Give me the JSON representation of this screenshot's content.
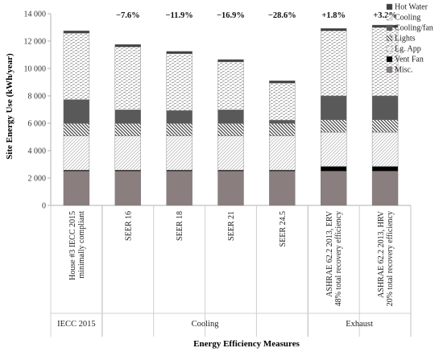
{
  "chart_data": {
    "type": "bar",
    "stacked": true,
    "ylabel": "Site Energy Use (kWh/year)",
    "xlabel": "Energy Efficiency Measures",
    "ylim": [
      0,
      14000
    ],
    "yticks": [
      0,
      2000,
      4000,
      6000,
      8000,
      10000,
      12000,
      14000
    ],
    "ytick_labels": [
      "0",
      "2 000",
      "4 000",
      "6 000",
      "8 000",
      "10 000",
      "12 000",
      "14 000"
    ],
    "categories": [
      [
        "House #3 IECC 2015",
        "minimally compliant"
      ],
      [
        "SEER 16"
      ],
      [
        "SEER 18"
      ],
      [
        "SEER 21"
      ],
      [
        "SEER 24.5"
      ],
      [
        "ASHRAE 62.2 2013, ERV",
        "48% total recovery efficiency"
      ],
      [
        "ASHRAE 62.2 2013, HRV",
        "20% total recovery efficiency"
      ]
    ],
    "groups": [
      {
        "label": "IECC 2015",
        "start": 0,
        "end": 0
      },
      {
        "label": "Cooling",
        "start": 1,
        "end": 4
      },
      {
        "label": "Exhaust",
        "start": 5,
        "end": 6
      }
    ],
    "annotations": [
      "",
      "−7.6%",
      "−11.9%",
      "−16.9%",
      "−28.6%",
      "+1.8%",
      "+3.2%"
    ],
    "grid": false,
    "legend_position": "top-right",
    "series": [
      {
        "name": "Misc.",
        "key": "misc",
        "values": [
          2500,
          2500,
          2500,
          2500,
          2500,
          2500,
          2500
        ]
      },
      {
        "name": "Vent Fan",
        "key": "vent",
        "values": [
          80,
          80,
          80,
          80,
          80,
          350,
          350
        ]
      },
      {
        "name": "Lg. App",
        "key": "lgapp",
        "values": [
          2500,
          2500,
          2500,
          2500,
          2500,
          2500,
          2500
        ]
      },
      {
        "name": "Lights",
        "key": "lights",
        "values": [
          900,
          900,
          900,
          900,
          900,
          900,
          900
        ]
      },
      {
        "name": "Cooling/fan",
        "key": "coolfan",
        "values": [
          1750,
          1000,
          950,
          1000,
          250,
          1750,
          1750
        ]
      },
      {
        "name": "Cooling",
        "key": "cooling",
        "values": [
          4850,
          4600,
          4150,
          3500,
          2700,
          4750,
          5000
        ]
      },
      {
        "name": "Hot Water",
        "key": "hotwater",
        "values": [
          170,
          170,
          170,
          170,
          170,
          170,
          170
        ]
      }
    ],
    "legend_order": [
      "Hot Water",
      "Cooling",
      "Cooling/fan",
      "Lights",
      "Lg. App",
      "Vent Fan",
      "Misc."
    ],
    "colors": {
      "misc": "#8a7e7e",
      "vent": "#000000",
      "lgapp_stroke": "#b8b8b8",
      "lights_stroke": "#3a3a3a",
      "coolfan": "#595959",
      "cooling_stroke": "#888888",
      "hotwater": "#404040"
    }
  }
}
